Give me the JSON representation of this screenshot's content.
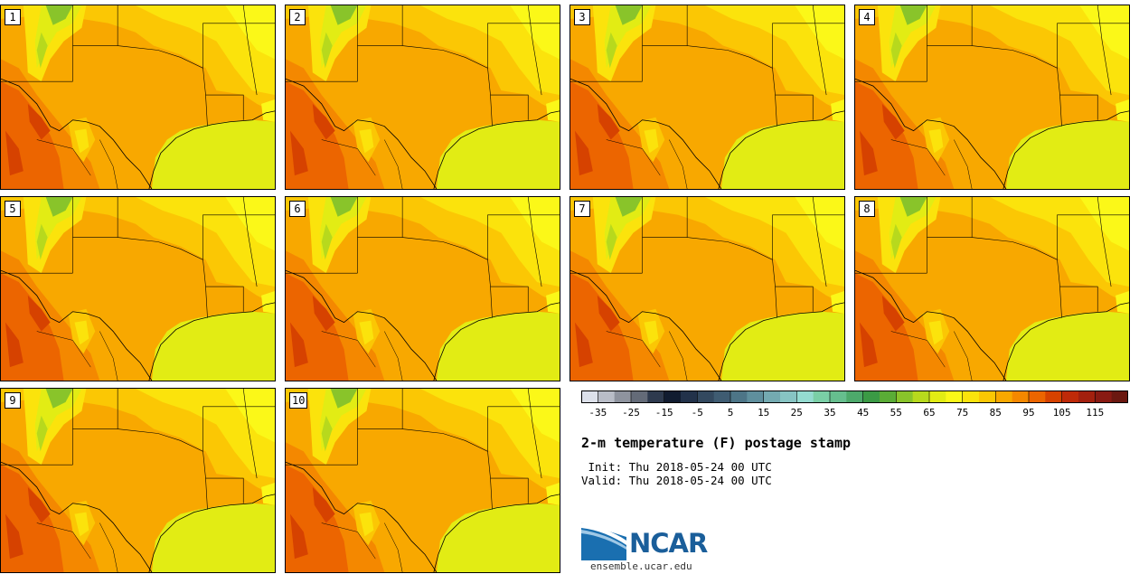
{
  "panels": [
    {
      "label": "1"
    },
    {
      "label": "2"
    },
    {
      "label": "3"
    },
    {
      "label": "4"
    },
    {
      "label": "5"
    },
    {
      "label": "6"
    },
    {
      "label": "7"
    },
    {
      "label": "8"
    },
    {
      "label": "9"
    },
    {
      "label": "10"
    }
  ],
  "colorbar": {
    "colors": [
      "#dde1ea",
      "#b9bdc7",
      "#8e939e",
      "#646b78",
      "#2e3a4e",
      "#111c30",
      "#22324a",
      "#33495f",
      "#3f5c72",
      "#4d7587",
      "#5f8f9d",
      "#74aab1",
      "#87c4c3",
      "#94dbd0",
      "#7acfa6",
      "#66be8e",
      "#4da96b",
      "#3b9a45",
      "#5aac36",
      "#89c42a",
      "#b7d91d",
      "#e2ec14",
      "#fbf818",
      "#fbe30c",
      "#fbc704",
      "#f8a800",
      "#f48800",
      "#ec6500",
      "#d64200",
      "#bf2a08",
      "#a3200e",
      "#891a12",
      "#6b1810"
    ],
    "tick_labels": [
      "-35",
      "-25",
      "-15",
      "-5",
      "5",
      "15",
      "25",
      "35",
      "45",
      "55",
      "65",
      "75",
      "85",
      "95",
      "105",
      "115"
    ],
    "tick_values": [
      -35,
      -25,
      -15,
      -5,
      5,
      15,
      25,
      35,
      45,
      55,
      65,
      75,
      85,
      95,
      105,
      115
    ],
    "min": -40,
    "max": 125,
    "step": 5
  },
  "title": "2-m temperature (F) postage stamp",
  "init_text": " Init: Thu 2018-05-24 00 UTC",
  "valid_text": "Valid: Thu 2018-05-24 00 UTC",
  "logo_text": "NCAR",
  "url": "ensemble.ucar.edu"
}
